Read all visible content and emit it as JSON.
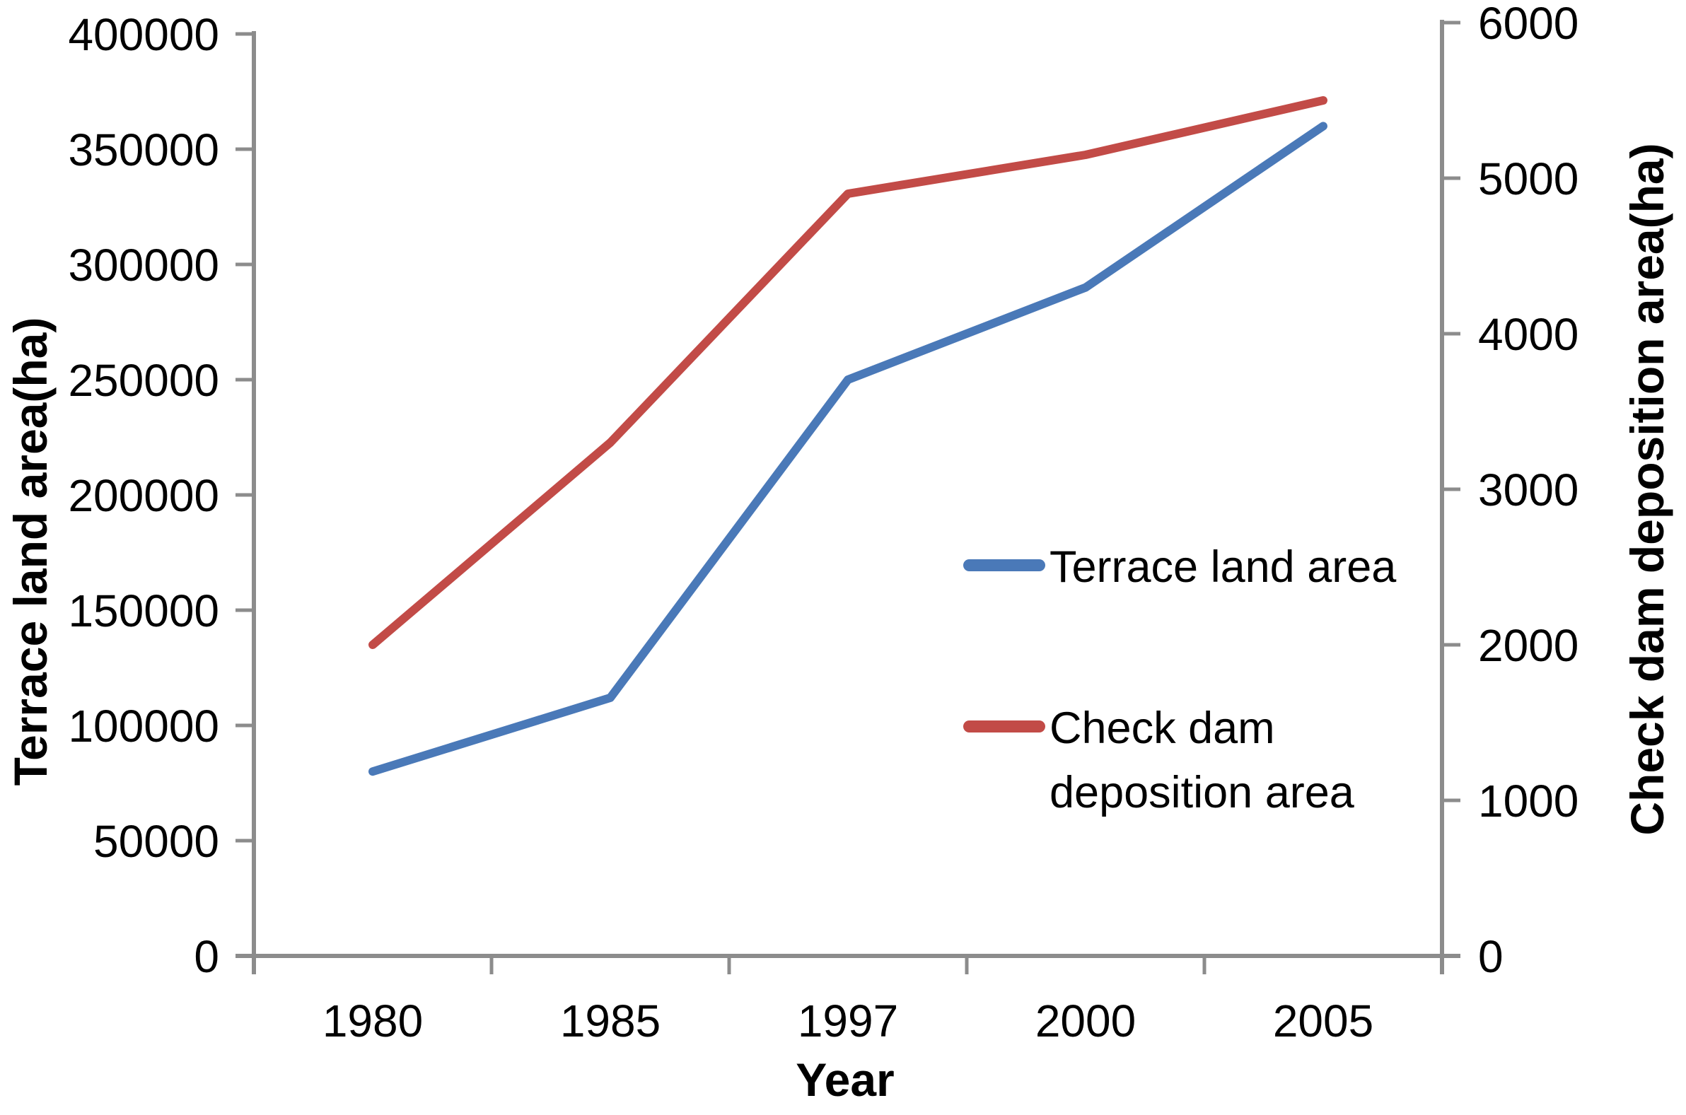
{
  "chart_data": {
    "type": "line",
    "categories": [
      "1980",
      "1985",
      "1997",
      "2000",
      "2005"
    ],
    "series": [
      {
        "name": "Terrace land area",
        "axis": "left",
        "color": "#4A79B8",
        "values": [
          80000,
          112000,
          250000,
          290000,
          360000
        ]
      },
      {
        "name": "Check dam deposition area",
        "axis": "right",
        "color": "#C24B47",
        "values": [
          2000,
          3300,
          4900,
          5150,
          5500
        ]
      }
    ],
    "left_axis": {
      "label": "Terrace land area(ha)",
      "min": 0,
      "max": 400000,
      "tick_step": 50000,
      "ticks": [
        "0",
        "50000",
        "100000",
        "150000",
        "200000",
        "250000",
        "300000",
        "350000",
        "400000"
      ]
    },
    "right_axis": {
      "label": "Check dam deposition area(ha)",
      "min": 0,
      "max": 6000,
      "tick_step": 1000,
      "ticks": [
        "0",
        "1000",
        "2000",
        "3000",
        "4000",
        "5000",
        "6000"
      ]
    },
    "x_axis": {
      "label": "Year",
      "ticks": [
        "1980",
        "1985",
        "1997",
        "2000",
        "2005"
      ]
    },
    "legend": {
      "position": "inside-right",
      "entries": [
        "Terrace land area",
        "Check dam deposition area"
      ]
    },
    "grid": false,
    "background": "#FFFFFF",
    "axis_color": "#8C8C8C",
    "text_color": "#000000"
  }
}
